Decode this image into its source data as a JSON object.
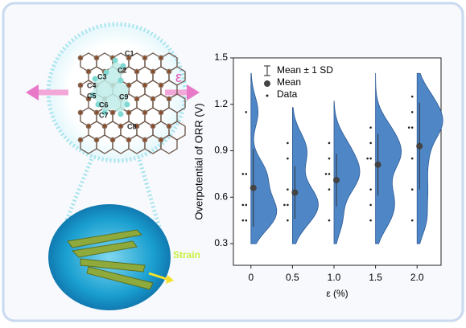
{
  "illustration": {
    "atom_labels": [
      "C1",
      "C2",
      "C3",
      "C4",
      "C5",
      "C6",
      "C7",
      "C8",
      "C9"
    ],
    "arrow_label": "ε",
    "strain_label": "Strain"
  },
  "chart_data": {
    "type": "violin",
    "categories": [
      "0",
      "0.5",
      "1.0",
      "1.5",
      "2.0"
    ],
    "color": "#4f86c6",
    "groups": [
      {
        "values": [
          1.15,
          0.75,
          0.75,
          0.55,
          0.55,
          0.45,
          0.45
        ],
        "mean": 0.66,
        "sd": 0.25,
        "range": [
          0.3,
          1.4
        ]
      },
      {
        "values": [
          0.95,
          0.85,
          0.65,
          0.55,
          0.55,
          0.45
        ],
        "mean": 0.63,
        "sd": 0.17,
        "range": [
          0.3,
          1.18
        ]
      },
      {
        "values": [
          0.95,
          0.85,
          0.75,
          0.75,
          0.65,
          0.45
        ],
        "mean": 0.71,
        "sd": 0.17,
        "range": [
          0.3,
          1.22
        ]
      },
      {
        "values": [
          1.05,
          0.95,
          0.85,
          0.85,
          0.65,
          0.55,
          0.45
        ],
        "mean": 0.81,
        "sd": 0.2,
        "range": [
          0.3,
          1.4
        ]
      },
      {
        "values": [
          1.25,
          1.15,
          1.05,
          1.05,
          0.85,
          0.65,
          0.45
        ],
        "mean": 0.93,
        "sd": 0.28,
        "range": [
          0.3,
          1.4
        ]
      }
    ],
    "ylim": [
      0.16,
      1.5
    ],
    "yticks": [
      0.3,
      0.6,
      0.9,
      1.2,
      1.5
    ],
    "xlabel": "ε (%)",
    "ylabel": "Overpotential of ORR (V)",
    "legend": [
      "Mean ± 1 SD",
      "Mean",
      "Data"
    ]
  }
}
